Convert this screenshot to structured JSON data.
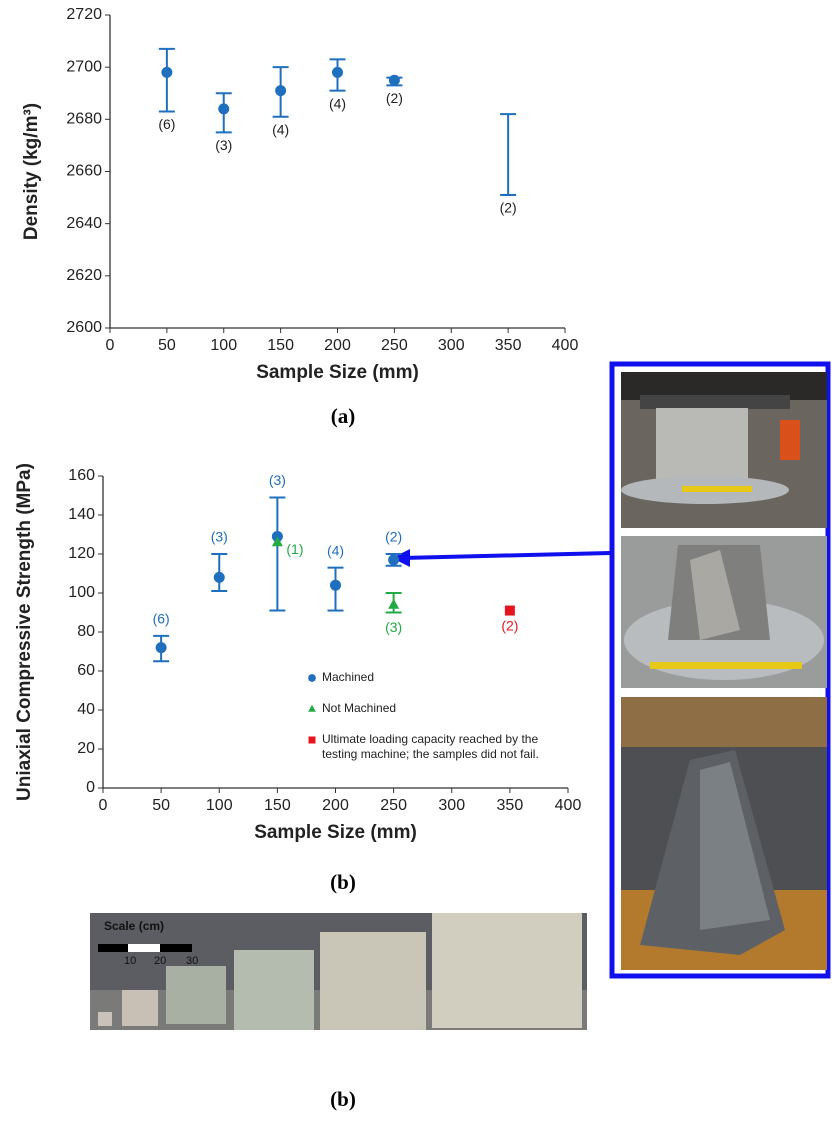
{
  "chart_data": [
    {
      "type": "errorbar",
      "x_label": "Sample Size (mm)",
      "y_label": "Density (kg/m³)",
      "xlim": [
        0,
        400
      ],
      "xticks": [
        0,
        50,
        100,
        150,
        200,
        250,
        300,
        350,
        400
      ],
      "ylim": [
        2600,
        2720
      ],
      "yticks": [
        2600,
        2620,
        2640,
        2660,
        2680,
        2700,
        2720
      ],
      "series": [
        {
          "color": "#1f6fbf",
          "marker": "circle",
          "x": [
            50,
            100,
            150,
            200,
            250,
            350
          ],
          "values": [
            2698,
            2684,
            2691,
            2698,
            2695,
            null
          ],
          "lower": [
            2683,
            2675,
            2681,
            2691,
            2693,
            2651
          ],
          "upper": [
            2707,
            2690,
            2700,
            2703,
            2696,
            2682
          ],
          "labels": [
            "(6)",
            "(3)",
            "(4)",
            "(4)",
            "(2)",
            "(2)"
          ]
        }
      ]
    },
    {
      "type": "errorbar",
      "x_label": "Sample Size (mm)",
      "y_label": "Uniaxial Compressive Strength (MPa)",
      "xlim": [
        0,
        400
      ],
      "xticks": [
        0,
        50,
        100,
        150,
        200,
        250,
        300,
        350,
        400
      ],
      "ylim": [
        0,
        160
      ],
      "yticks": [
        0,
        20,
        40,
        60,
        80,
        100,
        120,
        140,
        160
      ],
      "series": [
        {
          "name": "Machined",
          "color": "#1f6fbf",
          "marker": "circle",
          "x": [
            50,
            100,
            150,
            200,
            250
          ],
          "values": [
            72,
            108,
            129,
            104,
            117
          ],
          "lower": [
            65,
            101,
            91,
            91,
            114
          ],
          "upper": [
            78,
            120,
            149,
            113,
            120
          ],
          "labels": [
            "(6)",
            "(3)",
            "(3)",
            "(4)",
            "(2)"
          ]
        },
        {
          "name": "Not Machined",
          "color": "#22aa44",
          "marker": "triangle",
          "x": [
            150,
            250
          ],
          "values": [
            126,
            94
          ],
          "lower": [
            null,
            90
          ],
          "upper": [
            null,
            100
          ],
          "labels": [
            "(1)",
            "(3)"
          ]
        },
        {
          "name": "Ultimate loading capacity reached by the testing machine; the samples did not fail.",
          "color": "#e8141c",
          "marker": "square",
          "x": [
            350
          ],
          "values": [
            91
          ],
          "lower": [
            null
          ],
          "upper": [
            null
          ],
          "labels": [
            "(2)"
          ]
        }
      ]
    }
  ],
  "captions": [
    "(a)",
    "(b)",
    "(b)"
  ],
  "photo_scale": {
    "title": "Scale (cm)",
    "ticks": [
      "10",
      "20",
      "30"
    ]
  }
}
